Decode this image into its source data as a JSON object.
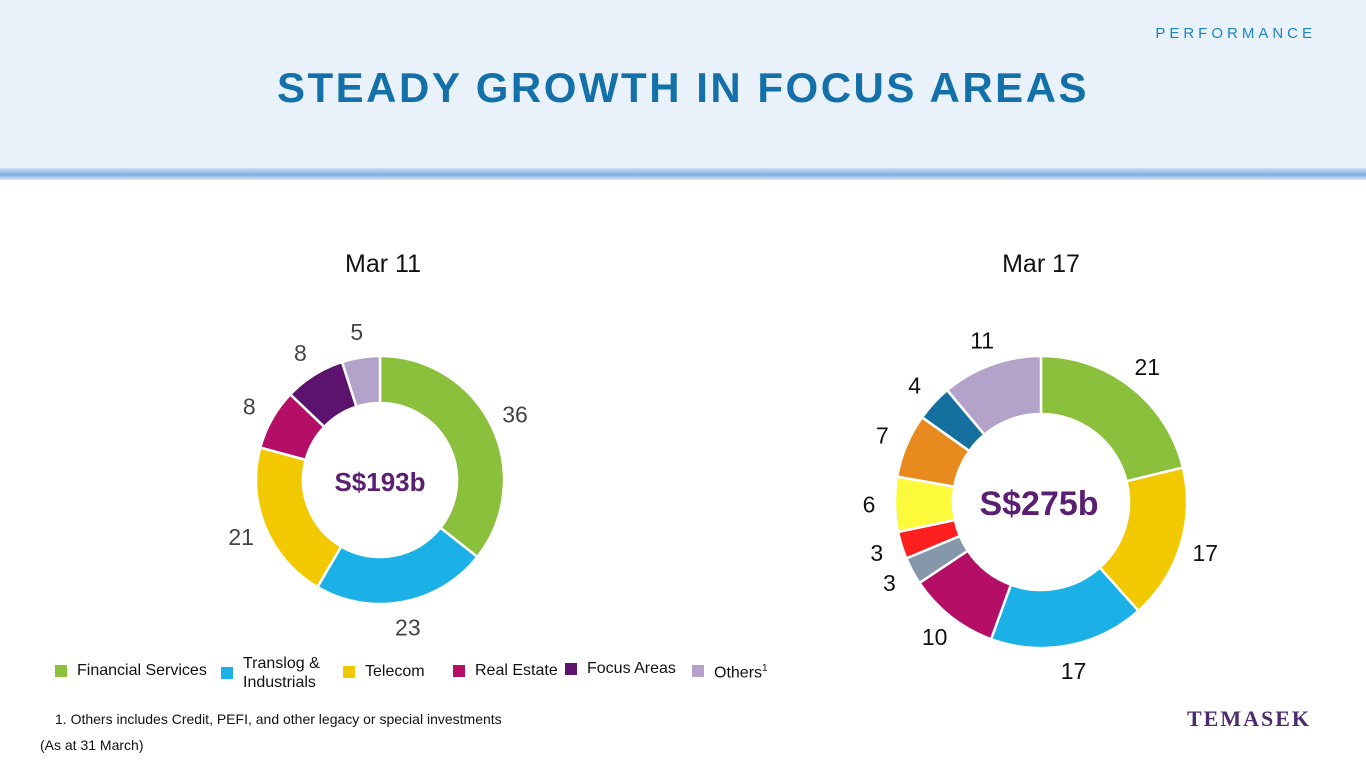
{
  "header": {
    "section": "PERFORMANCE",
    "title": "STEADY GROWTH IN FOCUS AREAS"
  },
  "colors": {
    "financial": "#8bc03c",
    "translog": "#1cb1e6",
    "telecom": "#f2c900",
    "real_estate": "#b50e67",
    "focus": "#5c136e",
    "others": "#b3a2c9",
    "grey": "#8497ab",
    "red": "#ff1f1f",
    "yellow": "#fdfa3c",
    "orange": "#e98a1e",
    "blue": "#16709f",
    "center_text": "#5a1e72"
  },
  "chart_data": [
    {
      "type": "pie",
      "title": "Mar 11",
      "center_label": "S$193b",
      "slices": [
        {
          "name": "Financial Services",
          "value": 36,
          "color": "#8bc03c"
        },
        {
          "name": "Translog & Industrials",
          "value": 23,
          "color": "#1cb1e6"
        },
        {
          "name": "Telecom",
          "value": 21,
          "color": "#f2c900"
        },
        {
          "name": "Real Estate",
          "value": 8,
          "color": "#b50e67"
        },
        {
          "name": "Focus Areas",
          "value": 8,
          "color": "#5c136e"
        },
        {
          "name": "Others",
          "value": 5,
          "color": "#b3a2c9"
        }
      ]
    },
    {
      "type": "pie",
      "title": "Mar 17",
      "center_label": "S$275b",
      "slices": [
        {
          "value": 21,
          "color": "#8bc03c"
        },
        {
          "value": 17,
          "color": "#f2c900"
        },
        {
          "value": 17,
          "color": "#1cb1e6"
        },
        {
          "value": 10,
          "color": "#b50e67"
        },
        {
          "value": 3,
          "color": "#8497ab"
        },
        {
          "value": 3,
          "color": "#ff1f1f"
        },
        {
          "value": 6,
          "color": "#fdfa3c"
        },
        {
          "value": 7,
          "color": "#e98a1e"
        },
        {
          "value": 4,
          "color": "#16709f"
        },
        {
          "value": 11,
          "color": "#b3a2c9"
        }
      ]
    }
  ],
  "legend": [
    {
      "label": "Financial Services",
      "color": "#8bc03c"
    },
    {
      "label": "Translog &",
      "label2": "Industrials",
      "color": "#1cb1e6"
    },
    {
      "label": "Telecom",
      "color": "#f2c900"
    },
    {
      "label": "Real Estate",
      "color": "#b50e67"
    },
    {
      "label": "Focus Areas",
      "color": "#5c136e"
    },
    {
      "label": "Others",
      "sup": "1",
      "color": "#b3a2c9"
    }
  ],
  "footnote": "1. Others includes Credit, PEFI, and other legacy or special investments",
  "as_at": "(As at 31 March)",
  "logo": "TEMASEK"
}
